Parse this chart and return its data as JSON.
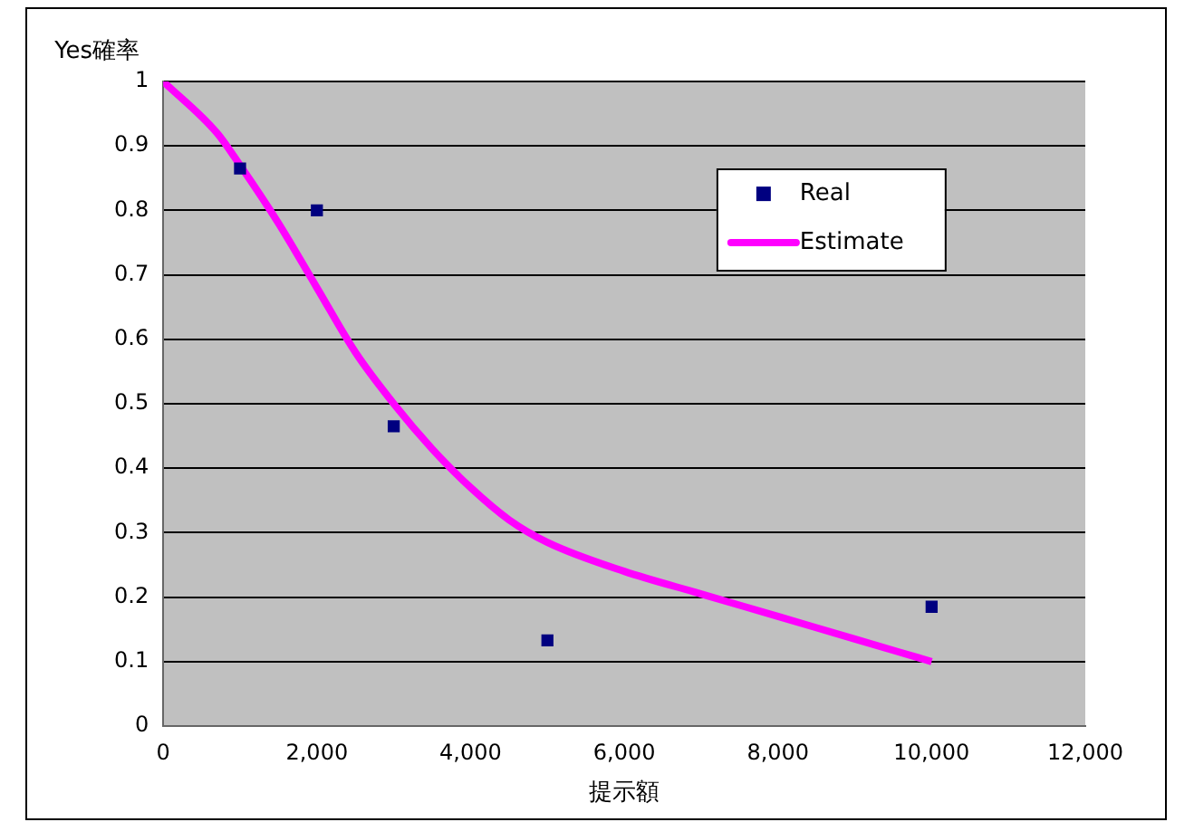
{
  "chart_data": {
    "type": "scatter",
    "ylabel": "Yes確率",
    "xlabel": "提示額",
    "xlim": [
      0,
      12000
    ],
    "xticks": [
      0,
      {
        "value": 2000,
        "label": "2,000"
      },
      {
        "value": 4000,
        "label": "4,000"
      },
      {
        "value": 6000,
        "label": "6,000"
      },
      {
        "value": 8000,
        "label": "8,000"
      },
      {
        "value": 10000,
        "label": "10,000"
      },
      {
        "value": 12000,
        "label": "12,000"
      }
    ],
    "ylim": [
      0,
      1
    ],
    "yticks": [
      0,
      0.1,
      0.2,
      0.3,
      0.4,
      0.5,
      0.6,
      0.7,
      0.8,
      0.9,
      1
    ],
    "grid": "y",
    "legend": "top right",
    "series": [
      {
        "name": "Real",
        "type": "scatter",
        "marker": "square",
        "color": "#000080",
        "x": [
          1000,
          2000,
          3000,
          5000,
          10000
        ],
        "values": [
          0.865,
          0.8,
          0.465,
          0.133,
          0.185
        ]
      },
      {
        "name": "Estimate",
        "type": "line",
        "marker": "none",
        "line_style": "solid",
        "color": "#ff00ff",
        "x": [
          0,
          700,
          1000,
          1500,
          2000,
          2500,
          3000,
          3500,
          4000,
          4500,
          5000,
          6000,
          7000,
          8000,
          9000,
          10000
        ],
        "values": [
          1,
          0.92,
          0.87,
          0.78,
          0.68,
          0.58,
          0.5,
          0.43,
          0.37,
          0.32,
          0.285,
          0.24,
          0.205,
          0.17,
          0.135,
          0.1
        ]
      }
    ]
  }
}
